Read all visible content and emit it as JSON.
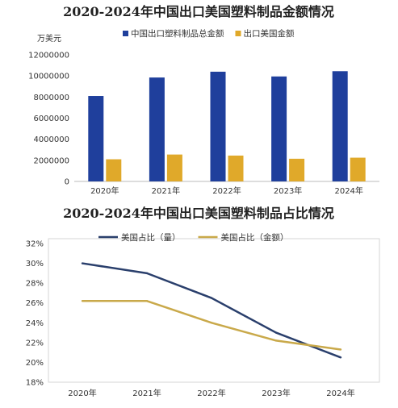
{
  "chart_data": [
    {
      "type": "bar",
      "title": "2020-2024年中国出口美国塑料制品金额情况",
      "ylabel": "万美元",
      "categories": [
        "2020年",
        "2021年",
        "2022年",
        "2023年",
        "2024年"
      ],
      "ylim": [
        0,
        12000000
      ],
      "yticks": [
        "0",
        "2000000",
        "4000000",
        "6000000",
        "8000000",
        "10000000",
        "12000000"
      ],
      "grid": false,
      "legend": "top",
      "series": [
        {
          "name": "中国出口塑料制品总金额",
          "color": "#1f3f9c",
          "values": [
            8100000,
            9850000,
            10400000,
            9950000,
            10450000
          ]
        },
        {
          "name": "出口美国金额",
          "color": "#e0a92a",
          "values": [
            2100000,
            2550000,
            2450000,
            2150000,
            2250000
          ]
        }
      ]
    },
    {
      "type": "line",
      "title": "2020-2024年中国出口美国塑料制品占比情况",
      "categories": [
        "2020年",
        "2021年",
        "2022年",
        "2023年",
        "2024年"
      ],
      "ylim": [
        18,
        32
      ],
      "yticks": [
        "18%",
        "20%",
        "22%",
        "24%",
        "26%",
        "28%",
        "30%",
        "32%"
      ],
      "grid": false,
      "legend": "top",
      "series": [
        {
          "name": "美国占比（量）",
          "color": "#2a3f6c",
          "values": [
            30.0,
            29.0,
            26.5,
            23.0,
            20.5
          ]
        },
        {
          "name": "美国占比（金额）",
          "color": "#c9a94a",
          "values": [
            26.2,
            26.2,
            24.0,
            22.2,
            21.3
          ]
        }
      ]
    }
  ]
}
